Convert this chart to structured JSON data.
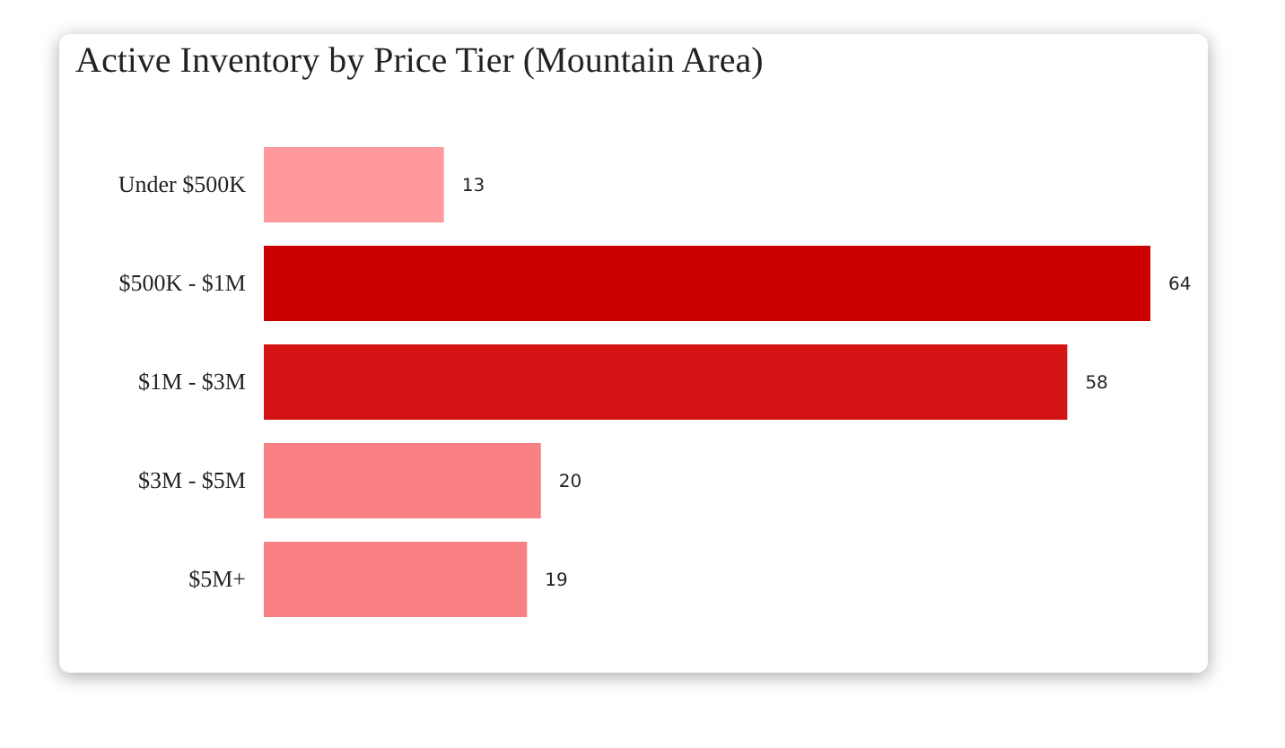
{
  "chart_data": {
    "type": "bar",
    "orientation": "horizontal",
    "title": "Active Inventory by Price Tier (Mountain Area)",
    "categories": [
      "Under $500K",
      "$500K - $1M",
      "$1M - $3M",
      "$3M - $5M",
      "$5M+"
    ],
    "values": [
      13,
      64,
      58,
      20,
      19
    ],
    "colors": [
      "#ff999b",
      "#cc0000",
      "#d41414",
      "#f98083",
      "#f98083"
    ],
    "data_labels": true
  }
}
